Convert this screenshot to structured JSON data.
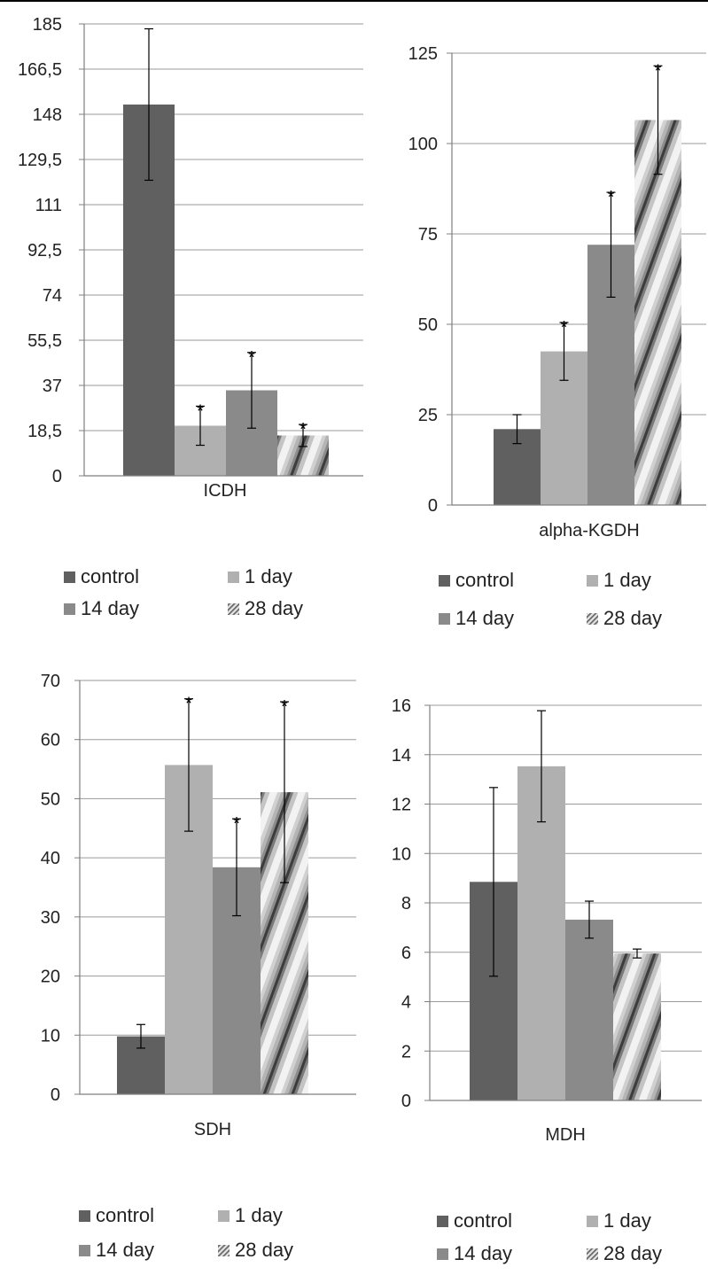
{
  "legend_labels": {
    "control": "control",
    "d1": "1 day",
    "d14": "14 day",
    "d28": "28 day"
  },
  "colors": {
    "control": "#606060",
    "d1": "#b0b0b0",
    "d14": "#8a8a8a",
    "d28_pattern": "striped-gradient",
    "grid": "#9a9a9a",
    "axis": "#7f7f7f"
  },
  "chart_data": [
    {
      "type": "bar",
      "xlabel": "ICDH",
      "categories": [
        "ICDH"
      ],
      "series": [
        {
          "name": "control",
          "values": [
            152
          ],
          "error": [
            31
          ],
          "star": false
        },
        {
          "name": "1 day",
          "values": [
            20.5
          ],
          "error": [
            8
          ],
          "star": true
        },
        {
          "name": "14 day",
          "values": [
            35
          ],
          "error": [
            15.5
          ],
          "star": true
        },
        {
          "name": "28 day",
          "values": [
            16.5
          ],
          "error": [
            4.5
          ],
          "star": true
        }
      ],
      "ylim": [
        0,
        185
      ],
      "yticks": [
        0,
        18.5,
        37,
        55.5,
        74,
        92.5,
        111,
        129.5,
        148,
        166.5,
        185
      ],
      "yticklabels": [
        "0",
        "18,5",
        "37",
        "55,5",
        "74",
        "92,5",
        "111",
        "129,5",
        "148",
        "166,5",
        "185"
      ],
      "grid": true,
      "legend": "bottom"
    },
    {
      "type": "bar",
      "xlabel": "alpha-KGDH",
      "categories": [
        "alpha-KGDH"
      ],
      "series": [
        {
          "name": "control",
          "values": [
            21
          ],
          "error": [
            4
          ],
          "star": false
        },
        {
          "name": "1 day",
          "values": [
            42.5
          ],
          "error": [
            8
          ],
          "star": true
        },
        {
          "name": "14 day",
          "values": [
            72
          ],
          "error": [
            14.5
          ],
          "star": true
        },
        {
          "name": "28 day",
          "values": [
            106.5
          ],
          "error": [
            15
          ],
          "star": true
        }
      ],
      "ylim": [
        0,
        125
      ],
      "yticks": [
        0,
        25,
        50,
        75,
        100,
        125
      ],
      "yticklabels": [
        "0",
        "25",
        "50",
        "75",
        "100",
        "125"
      ],
      "grid": true,
      "legend": "bottom"
    },
    {
      "type": "bar",
      "xlabel": "SDH",
      "categories": [
        "SDH"
      ],
      "series": [
        {
          "name": "control",
          "values": [
            9.8
          ],
          "error": [
            2
          ],
          "star": false
        },
        {
          "name": "1 day",
          "values": [
            55.7
          ],
          "error": [
            11.2
          ],
          "star": true
        },
        {
          "name": "14 day",
          "values": [
            38.4
          ],
          "error": [
            8.2
          ],
          "star": true
        },
        {
          "name": "28 day",
          "values": [
            51.1
          ],
          "error": [
            15.3
          ],
          "star": true
        }
      ],
      "ylim": [
        0,
        70
      ],
      "yticks": [
        0,
        10,
        20,
        30,
        40,
        50,
        60,
        70
      ],
      "yticklabels": [
        "0",
        "10",
        "20",
        "30",
        "40",
        "50",
        "60",
        "70"
      ],
      "grid": true,
      "legend": "bottom"
    },
    {
      "type": "bar",
      "xlabel": "MDH",
      "categories": [
        "MDH"
      ],
      "series": [
        {
          "name": "control",
          "values": [
            8.85
          ],
          "error": [
            3.82
          ],
          "star": false
        },
        {
          "name": "1 day",
          "values": [
            13.53
          ],
          "error": [
            2.25
          ],
          "star": false
        },
        {
          "name": "14 day",
          "values": [
            7.32
          ],
          "error": [
            0.75
          ],
          "star": false
        },
        {
          "name": "28 day",
          "values": [
            5.95
          ],
          "error": [
            0.18
          ],
          "star": false
        }
      ],
      "ylim": [
        0,
        16
      ],
      "yticks": [
        0,
        2,
        4,
        6,
        8,
        10,
        12,
        14,
        16
      ],
      "yticklabels": [
        "0",
        "2",
        "4",
        "6",
        "8",
        "10",
        "12",
        "14",
        "16"
      ],
      "grid": true,
      "legend": "bottom"
    }
  ]
}
